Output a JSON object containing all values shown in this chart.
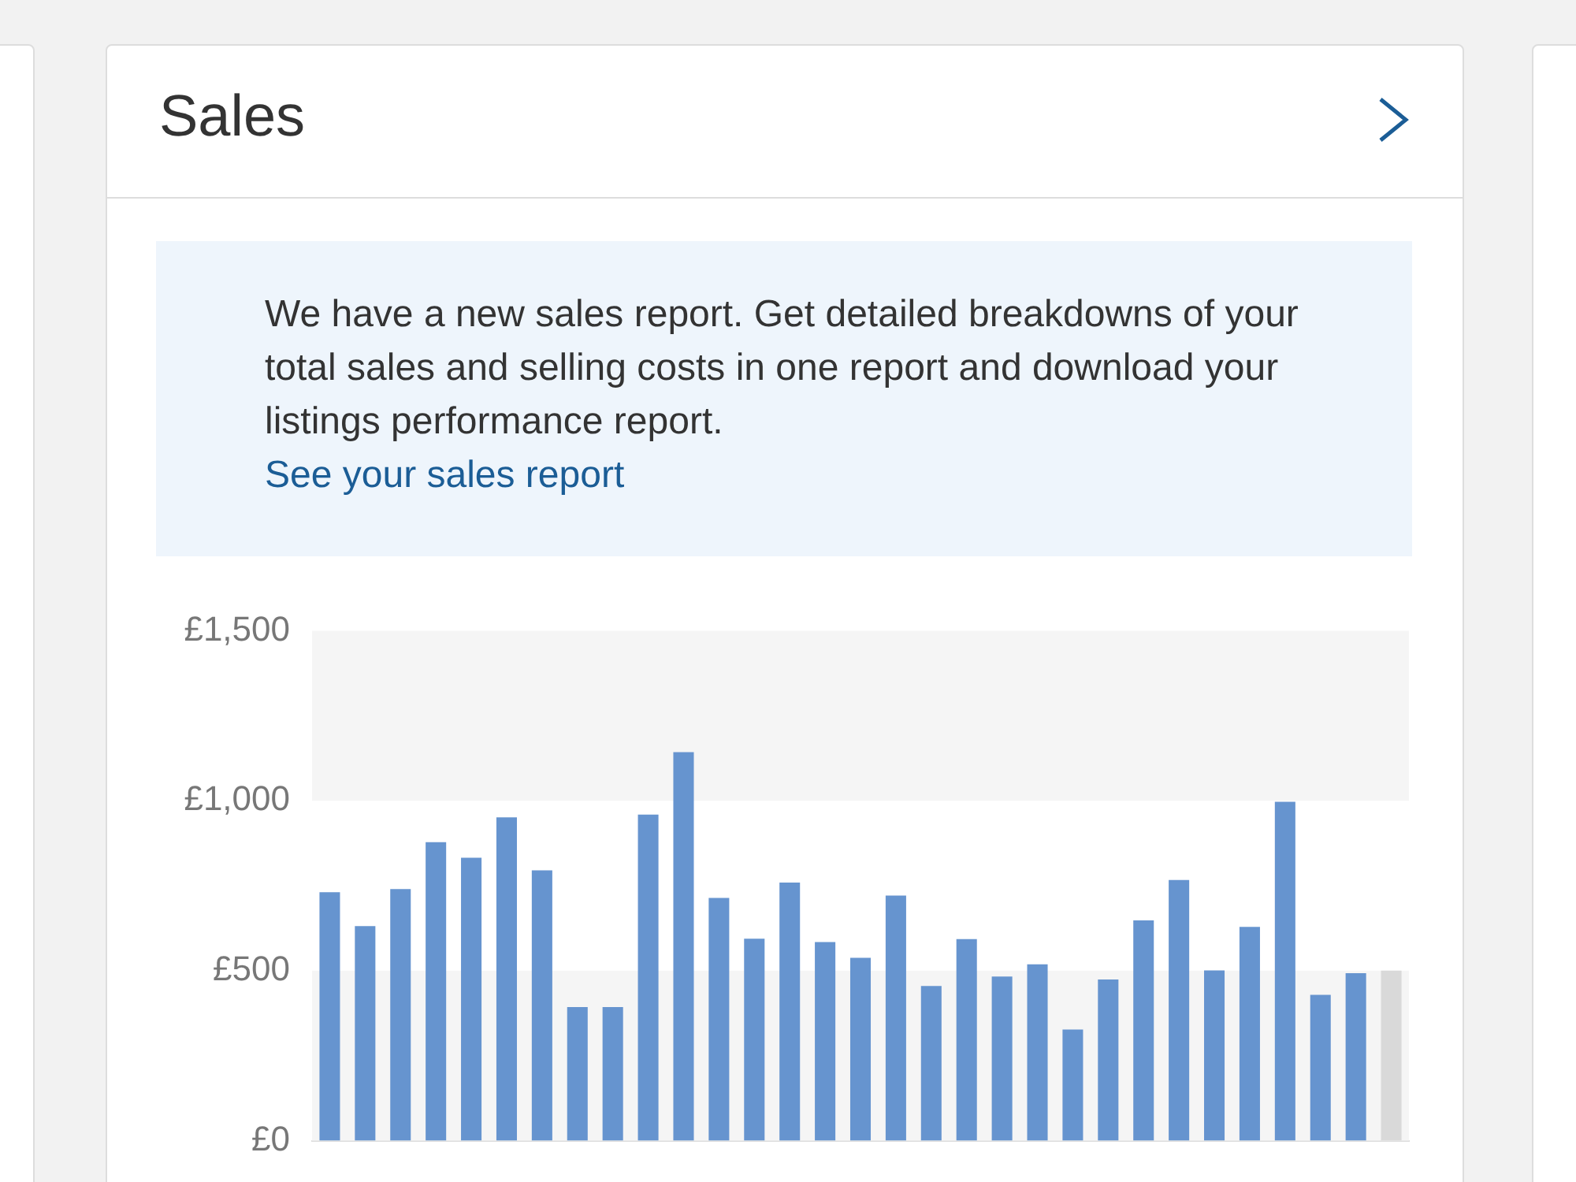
{
  "chart_data": {
    "type": "bar",
    "title": "Sales",
    "annotations": [
      "We have a new sales report. Get detailed breakdowns of your total sales and selling costs in one report and download your listings performance report.",
      "See your sales report"
    ],
    "categories": [
      null,
      null,
      null,
      null,
      null,
      null,
      null,
      null,
      null,
      null,
      null,
      null,
      null,
      null,
      null,
      null,
      null,
      null,
      null,
      null,
      null,
      null,
      null,
      null,
      null,
      null,
      null,
      null,
      null,
      null,
      null
    ],
    "values": [
      731,
      631,
      740,
      878,
      832,
      951,
      795,
      393,
      393,
      959,
      1143,
      714,
      594,
      759,
      584,
      538,
      721,
      455,
      593,
      483,
      519,
      327,
      474,
      648,
      767,
      501,
      629,
      997,
      429,
      493,
      500
    ],
    "colors": [
      "#6694cf",
      "#6694cf",
      "#6694cf",
      "#6694cf",
      "#6694cf",
      "#6694cf",
      "#6694cf",
      "#6694cf",
      "#6694cf",
      "#6694cf",
      "#6694cf",
      "#6694cf",
      "#6694cf",
      "#6694cf",
      "#6694cf",
      "#6694cf",
      "#6694cf",
      "#6694cf",
      "#6694cf",
      "#6694cf",
      "#6694cf",
      "#6694cf",
      "#6694cf",
      "#6694cf",
      "#6694cf",
      "#6694cf",
      "#6694cf",
      "#6694cf",
      "#6694cf",
      "#6694cf",
      "#d9d9d9"
    ],
    "ylim": [
      0,
      1500
    ],
    "yticks": [
      {
        "value": 0,
        "label": "£0"
      },
      {
        "value": 500,
        "label": "£500"
      },
      {
        "value": 1000,
        "label": "£1,000"
      },
      {
        "value": 1500,
        "label": "£1,500"
      }
    ],
    "bands": [
      {
        "axis": "y",
        "from": 0,
        "to": 500,
        "color": "#f5f5f5"
      },
      {
        "axis": "y",
        "from": 1000,
        "to": 1500,
        "color": "#f5f5f5"
      }
    ],
    "grid": false,
    "legend": false
  }
}
